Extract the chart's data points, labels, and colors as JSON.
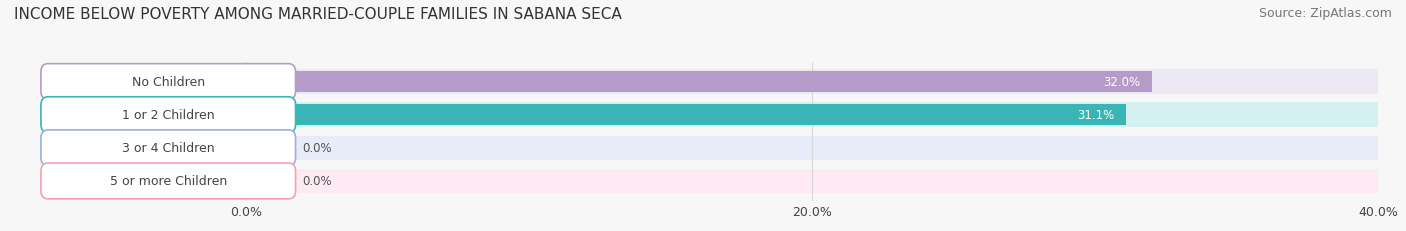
{
  "title": "INCOME BELOW POVERTY AMONG MARRIED-COUPLE FAMILIES IN SABANA SECA",
  "source": "Source: ZipAtlas.com",
  "categories": [
    "No Children",
    "1 or 2 Children",
    "3 or 4 Children",
    "5 or more Children"
  ],
  "values": [
    32.0,
    31.1,
    0.0,
    0.0
  ],
  "bar_colors": [
    "#b59cc8",
    "#3ab5b5",
    "#9faee0",
    "#f3a0b8"
  ],
  "bar_bg_colors": [
    "#ede8f5",
    "#d5f0f0",
    "#e8ebf8",
    "#fdeaf2"
  ],
  "row_bg_colors": [
    "#ede8f5",
    "#d5f0f0",
    "#e8ebf8",
    "#fdeaf2"
  ],
  "xlim": [
    0,
    40
  ],
  "xticks": [
    0.0,
    20.0,
    40.0
  ],
  "xtick_labels": [
    "0.0%",
    "20.0%",
    "40.0%"
  ],
  "title_fontsize": 11,
  "source_fontsize": 9,
  "tick_fontsize": 9,
  "label_fontsize": 9,
  "value_fontsize": 8.5,
  "background_color": "#f7f7f7",
  "label_pill_facecolor": "white",
  "grid_color": "#d8d8d8",
  "text_color": "#444444",
  "value_text_color_inside": "white",
  "value_text_color_outside": "#555555"
}
